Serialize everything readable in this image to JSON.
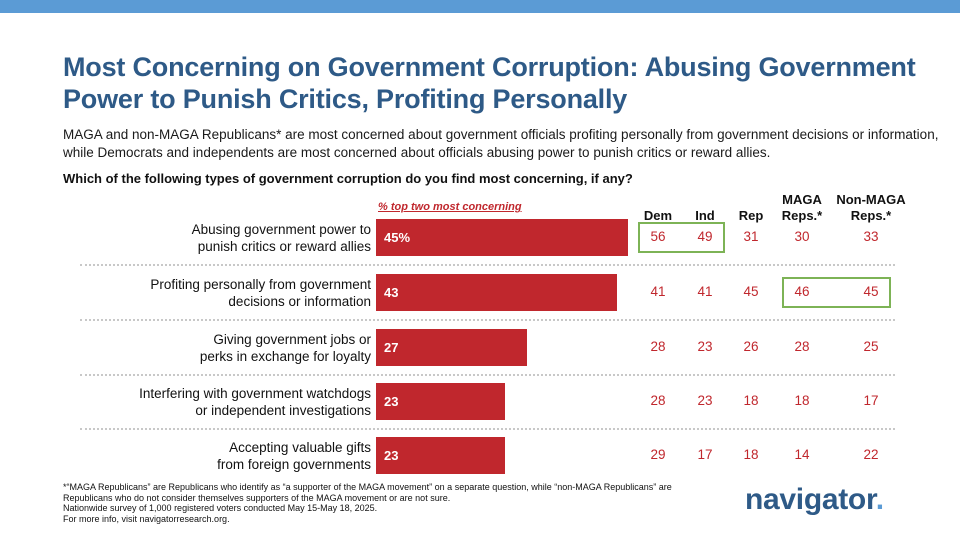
{
  "header": {
    "title": "Most Concerning on Government Corruption: Abusing Government Power to Punish Critics, Profiting Personally",
    "subtitle": "MAGA and non-MAGA Republicans* are most concerned about government officials profiting personally from government decisions or information, while Democrats and independents are most concerned about officials abusing power to punish critics or reward allies.",
    "question": "Which of the following types of government corruption do you find most concerning, if any?"
  },
  "chart_data": {
    "type": "bar",
    "orientation": "horizontal",
    "legend_label": "% top two most concerning",
    "categories": [
      "Abusing government power to punish critics or reward allies",
      "Profiting personally from government decisions or information",
      "Giving government jobs or perks in exchange for loyalty",
      "Interfering with government watchdogs or independent investigations",
      "Accepting valuable gifts from foreign governments"
    ],
    "category_lines": [
      [
        "Abusing government power to",
        "punish critics or reward allies"
      ],
      [
        "Profiting personally from government",
        "decisions or information"
      ],
      [
        "Giving government jobs or",
        "perks in exchange for loyalty"
      ],
      [
        "Interfering with government watchdogs",
        "or independent investigations"
      ],
      [
        "Accepting valuable gifts",
        "from foreign governments"
      ]
    ],
    "values": [
      45,
      43,
      27,
      23,
      23
    ],
    "value_labels": [
      "45%",
      "43",
      "27",
      "23",
      "23"
    ],
    "xlim": [
      0,
      100
    ],
    "columns": [
      {
        "lines": [
          "Dem"
        ]
      },
      {
        "lines": [
          "Ind"
        ]
      },
      {
        "lines": [
          "Rep"
        ]
      },
      {
        "lines": [
          "MAGA",
          "Reps.*"
        ]
      },
      {
        "lines": [
          "Non-MAGA",
          "Reps.*"
        ]
      }
    ],
    "table": [
      [
        "56",
        "49",
        "31",
        "30",
        "33"
      ],
      [
        "41",
        "41",
        "45",
        "46",
        "45"
      ],
      [
        "28",
        "23",
        "26",
        "28",
        "25"
      ],
      [
        "28",
        "23",
        "18",
        "18",
        "17"
      ],
      [
        "29",
        "17",
        "18",
        "14",
        "22"
      ]
    ],
    "highlights": [
      {
        "row": 0,
        "columns": [
          "Dem",
          "Ind"
        ]
      },
      {
        "row": 1,
        "columns": [
          "MAGA Reps.*",
          "Non-MAGA Reps.*"
        ]
      }
    ]
  },
  "footnote": [
    "*“MAGA Republicans” are Republicans who identify as “a supporter of the MAGA movement” on a separate question, while “non-MAGA Republicans” are",
    "Republicans who do not consider themselves supporters of the MAGA movement or are not sure.",
    "Nationwide survey of 1,000 registered voters conducted May 15-May 18, 2025.",
    "For more info, visit navigatorresearch.org."
  ],
  "logo": {
    "text": "navigator",
    "dot": "."
  },
  "colors": {
    "bar": "#c0272d",
    "title": "#2e5a87",
    "highlight": "#7db356",
    "top_bar": "#5b9bd5"
  }
}
